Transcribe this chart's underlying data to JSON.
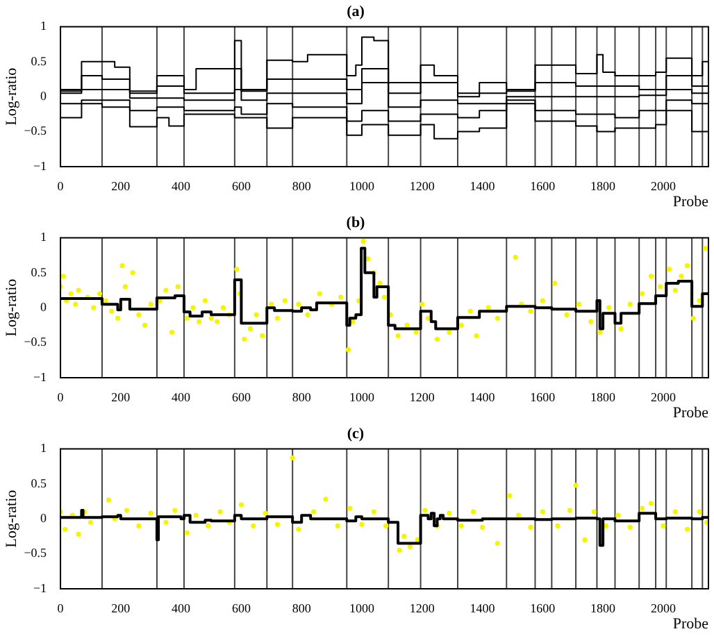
{
  "chart_data": [
    {
      "type": "step",
      "title": "(a)",
      "xlabel": "Probe",
      "ylabel": "Log-ratio",
      "xlim": [
        0,
        2150
      ],
      "xticks": [
        0,
        200,
        400,
        600,
        800,
        1000,
        1200,
        1400,
        1600,
        1800,
        2000
      ],
      "ylim": [
        -1,
        1
      ],
      "yticks": [
        -1,
        -0.5,
        0,
        0.5,
        1
      ],
      "grid": false,
      "legend": false,
      "ref_lines": [
        {
          "axis": "x",
          "value": 138
        },
        {
          "axis": "x",
          "value": 320
        },
        {
          "axis": "x",
          "value": 410
        },
        {
          "axis": "x",
          "value": 578
        },
        {
          "axis": "x",
          "value": 685
        },
        {
          "axis": "x",
          "value": 770
        },
        {
          "axis": "x",
          "value": 950
        },
        {
          "axis": "x",
          "value": 1088
        },
        {
          "axis": "x",
          "value": 1195
        },
        {
          "axis": "x",
          "value": 1318
        },
        {
          "axis": "x",
          "value": 1480
        },
        {
          "axis": "x",
          "value": 1575
        },
        {
          "axis": "x",
          "value": 1630
        },
        {
          "axis": "x",
          "value": 1710
        },
        {
          "axis": "x",
          "value": 1780
        },
        {
          "axis": "x",
          "value": 1840
        },
        {
          "axis": "x",
          "value": 1920
        },
        {
          "axis": "x",
          "value": 1975
        },
        {
          "axis": "x",
          "value": 2010
        },
        {
          "axis": "x",
          "value": 2095
        },
        {
          "axis": "x",
          "value": 2130
        }
      ],
      "series": [
        {
          "color": "#000000",
          "x": [
            0,
            70,
            180,
            230,
            320,
            410,
            450,
            578,
            600,
            685,
            770,
            820,
            950,
            980,
            1000,
            1040,
            1088,
            1195,
            1240,
            1318,
            1390,
            1480,
            1575,
            1710,
            1780,
            1800,
            1840,
            1920,
            1975,
            2010,
            2095,
            2130,
            2150
          ],
          "values": [
            0.1,
            0.5,
            0.42,
            0.08,
            0.3,
            0.1,
            0.4,
            0.8,
            0.1,
            0.52,
            0.5,
            0.6,
            0.3,
            0.45,
            0.85,
            0.8,
            0.2,
            0.45,
            0.3,
            0.0,
            0.2,
            0.1,
            0.45,
            0.33,
            0.6,
            0.35,
            0.3,
            0.3,
            0.35,
            0.55,
            0.3,
            0.5,
            0.5
          ]
        },
        {
          "color": "#000000",
          "x": [
            0,
            70,
            138,
            230,
            320,
            410,
            578,
            600,
            685,
            770,
            950,
            1000,
            1088,
            1195,
            1318,
            1480,
            1575,
            1710,
            1840,
            1920,
            2010,
            2095,
            2150
          ],
          "values": [
            0.08,
            0.3,
            0.25,
            0.05,
            0.15,
            0.05,
            0.4,
            0.08,
            0.25,
            0.25,
            0.1,
            0.4,
            0.05,
            0.2,
            0.05,
            0.08,
            0.2,
            0.15,
            0.15,
            0.1,
            0.3,
            0.15,
            0.15
          ]
        },
        {
          "color": "#000000",
          "x": [
            0,
            70,
            230,
            410,
            578,
            600,
            685,
            950,
            1000,
            1088,
            1195,
            1318,
            1480,
            1575,
            1920,
            2010,
            2095,
            2150
          ],
          "values": [
            0.05,
            0.1,
            -0.02,
            -0.05,
            0.1,
            -0.05,
            0.05,
            -0.1,
            0.2,
            -0.15,
            -0.05,
            -0.1,
            0.0,
            0.0,
            0.02,
            0.1,
            0.05,
            0.05
          ]
        },
        {
          "color": "#000000",
          "x": [
            0,
            70,
            230,
            320,
            410,
            578,
            600,
            685,
            770,
            950,
            1000,
            1088,
            1195,
            1318,
            1390,
            1480,
            1575,
            1710,
            1840,
            1920,
            2010,
            2095,
            2150
          ],
          "values": [
            -0.1,
            -0.05,
            -0.2,
            -0.15,
            -0.2,
            -0.15,
            -0.25,
            -0.1,
            -0.15,
            -0.35,
            -0.2,
            -0.35,
            -0.25,
            -0.3,
            -0.2,
            -0.05,
            -0.2,
            -0.25,
            -0.3,
            -0.2,
            -0.05,
            -0.1,
            -0.1
          ]
        },
        {
          "color": "#000000",
          "x": [
            0,
            70,
            138,
            230,
            320,
            360,
            410,
            578,
            600,
            685,
            770,
            950,
            1000,
            1088,
            1195,
            1240,
            1318,
            1390,
            1480,
            1575,
            1710,
            1780,
            1840,
            1920,
            1975,
            2010,
            2095,
            2150
          ],
          "values": [
            -0.3,
            -0.1,
            -0.15,
            -0.43,
            -0.3,
            -0.42,
            -0.25,
            -0.3,
            -0.3,
            -0.45,
            -0.3,
            -0.55,
            -0.4,
            -0.55,
            -0.4,
            -0.6,
            -0.5,
            -0.45,
            -0.1,
            -0.35,
            -0.42,
            -0.5,
            -0.45,
            -0.45,
            -0.4,
            -0.2,
            -0.5,
            -0.5
          ]
        }
      ]
    },
    {
      "type": "scatter",
      "title": "(b)",
      "xlabel": "Probe",
      "ylabel": "Log-ratio",
      "xlim": [
        0,
        2150
      ],
      "xticks": [
        0,
        200,
        400,
        600,
        800,
        1000,
        1200,
        1400,
        1600,
        1800,
        2000
      ],
      "ylim": [
        -1,
        1
      ],
      "yticks": [
        -1,
        -0.5,
        0,
        0.5,
        1
      ],
      "grid": false,
      "legend": false,
      "ref_lines": [
        {
          "axis": "x",
          "value": 138
        },
        {
          "axis": "x",
          "value": 320
        },
        {
          "axis": "x",
          "value": 410
        },
        {
          "axis": "x",
          "value": 578
        },
        {
          "axis": "x",
          "value": 685
        },
        {
          "axis": "x",
          "value": 770
        },
        {
          "axis": "x",
          "value": 950
        },
        {
          "axis": "x",
          "value": 1088
        },
        {
          "axis": "x",
          "value": 1195
        },
        {
          "axis": "x",
          "value": 1318
        },
        {
          "axis": "x",
          "value": 1480
        },
        {
          "axis": "x",
          "value": 1575
        },
        {
          "axis": "x",
          "value": 1630
        },
        {
          "axis": "x",
          "value": 1710
        },
        {
          "axis": "x",
          "value": 1780
        },
        {
          "axis": "x",
          "value": 1840
        },
        {
          "axis": "x",
          "value": 1920
        },
        {
          "axis": "x",
          "value": 1975
        },
        {
          "axis": "x",
          "value": 2010
        },
        {
          "axis": "x",
          "value": 2095
        },
        {
          "axis": "x",
          "value": 2130
        }
      ],
      "series": [
        {
          "type": "scatter",
          "marker": "circle",
          "color": "#f5f500",
          "x": [
            0,
            10,
            20,
            35,
            50,
            60,
            90,
            110,
            130,
            150,
            170,
            190,
            205,
            215,
            240,
            260,
            280,
            300,
            330,
            350,
            370,
            390,
            420,
            440,
            460,
            480,
            500,
            520,
            540,
            560,
            585,
            595,
            610,
            630,
            650,
            670,
            700,
            720,
            745,
            790,
            820,
            860,
            900,
            930,
            955,
            970,
            990,
            1005,
            1020,
            1040,
            1060,
            1075,
            1095,
            1120,
            1150,
            1180,
            1200,
            1220,
            1250,
            1290,
            1330,
            1360,
            1380,
            1420,
            1450,
            1510,
            1530,
            1560,
            1600,
            1640,
            1680,
            1720,
            1760,
            1790,
            1820,
            1860,
            1890,
            1930,
            1960,
            1990,
            2020,
            2040,
            2060,
            2080,
            2100,
            2120,
            2140
          ],
          "values": [
            0.3,
            0.45,
            0.1,
            0.2,
            0.05,
            0.25,
            0.15,
            0.0,
            0.2,
            0.1,
            -0.05,
            -0.15,
            0.6,
            0.3,
            0.5,
            -0.1,
            -0.25,
            0.05,
            0.1,
            0.25,
            -0.35,
            0.3,
            -0.15,
            0.0,
            -0.2,
            0.1,
            -0.15,
            -0.2,
            0.0,
            -0.1,
            0.55,
            0.2,
            -0.45,
            -0.3,
            -0.1,
            -0.4,
            0.05,
            -0.15,
            0.1,
            0.05,
            -0.1,
            0.2,
            0.05,
            0.15,
            -0.6,
            -0.2,
            0.1,
            0.95,
            0.7,
            0.5,
            0.35,
            0.15,
            -0.1,
            -0.4,
            -0.25,
            -0.35,
            0.05,
            -0.15,
            -0.45,
            -0.35,
            -0.25,
            -0.05,
            -0.4,
            0.0,
            -0.15,
            0.72,
            0.05,
            -0.05,
            0.1,
            0.35,
            -0.1,
            0.05,
            -0.2,
            -0.35,
            0.0,
            -0.3,
            0.05,
            0.2,
            0.45,
            0.3,
            0.55,
            0.25,
            0.45,
            0.6,
            -0.15,
            0.1,
            0.85
          ]
        },
        {
          "type": "step",
          "color": "#000000",
          "x": [
            0,
            138,
            190,
            200,
            230,
            320,
            380,
            410,
            430,
            470,
            500,
            578,
            600,
            685,
            710,
            770,
            800,
            830,
            850,
            950,
            960,
            980,
            998,
            1010,
            1040,
            1050,
            1088,
            1110,
            1195,
            1230,
            1245,
            1318,
            1390,
            1480,
            1575,
            1630,
            1710,
            1780,
            1790,
            1800,
            1840,
            1860,
            1920,
            1975,
            2010,
            2050,
            2095,
            2130,
            2150
          ],
          "values": [
            0.13,
            0.05,
            -0.03,
            0.12,
            -0.02,
            0.14,
            0.17,
            -0.06,
            -0.12,
            -0.06,
            -0.1,
            0.4,
            -0.22,
            0.0,
            -0.04,
            -0.05,
            0.0,
            -0.03,
            0.07,
            -0.25,
            -0.15,
            -0.1,
            0.85,
            0.5,
            0.15,
            0.3,
            -0.25,
            -0.3,
            -0.05,
            -0.2,
            -0.3,
            -0.14,
            -0.05,
            0.02,
            0.0,
            -0.02,
            -0.05,
            0.1,
            -0.3,
            -0.08,
            -0.22,
            -0.08,
            0.06,
            0.17,
            0.35,
            0.38,
            0.02,
            0.2,
            0.2
          ]
        }
      ]
    },
    {
      "type": "scatter",
      "title": "(c)",
      "xlabel": "Probe",
      "ylabel": "Log-ratio",
      "xlim": [
        0,
        2150
      ],
      "xticks": [
        0,
        200,
        400,
        600,
        800,
        1000,
        1200,
        1400,
        1600,
        1800,
        2000
      ],
      "ylim": [
        -1,
        1
      ],
      "yticks": [
        -1,
        -0.5,
        0,
        0.5,
        1
      ],
      "grid": false,
      "legend": false,
      "ref_lines": [
        {
          "axis": "x",
          "value": 138
        },
        {
          "axis": "x",
          "value": 320
        },
        {
          "axis": "x",
          "value": 410
        },
        {
          "axis": "x",
          "value": 578
        },
        {
          "axis": "x",
          "value": 685
        },
        {
          "axis": "x",
          "value": 770
        },
        {
          "axis": "x",
          "value": 950
        },
        {
          "axis": "x",
          "value": 1088
        },
        {
          "axis": "x",
          "value": 1195
        },
        {
          "axis": "x",
          "value": 1318
        },
        {
          "axis": "x",
          "value": 1480
        },
        {
          "axis": "x",
          "value": 1575
        },
        {
          "axis": "x",
          "value": 1630
        },
        {
          "axis": "x",
          "value": 1710
        },
        {
          "axis": "x",
          "value": 1780
        },
        {
          "axis": "x",
          "value": 1840
        },
        {
          "axis": "x",
          "value": 1920
        },
        {
          "axis": "x",
          "value": 1975
        },
        {
          "axis": "x",
          "value": 2010
        },
        {
          "axis": "x",
          "value": 2095
        },
        {
          "axis": "x",
          "value": 2130
        }
      ],
      "series": [
        {
          "type": "scatter",
          "marker": "circle",
          "color": "#f5f500",
          "x": [
            0,
            15,
            40,
            60,
            80,
            100,
            160,
            180,
            220,
            260,
            300,
            350,
            380,
            420,
            450,
            490,
            530,
            560,
            600,
            640,
            680,
            720,
            770,
            790,
            840,
            880,
            920,
            960,
            1000,
            1040,
            1080,
            1125,
            1140,
            1160,
            1185,
            1210,
            1250,
            1290,
            1330,
            1370,
            1400,
            1450,
            1490,
            1520,
            1560,
            1600,
            1650,
            1690,
            1710,
            1740,
            1770,
            1810,
            1850,
            1890,
            1930,
            1960,
            2000,
            2040,
            2080,
            2120,
            2145
          ],
          "values": [
            0.1,
            -0.15,
            0.05,
            -0.22,
            0.1,
            -0.05,
            0.27,
            0.0,
            0.12,
            -0.1,
            0.08,
            -0.05,
            0.12,
            -0.2,
            0.05,
            -0.1,
            0.1,
            -0.05,
            0.2,
            -0.1,
            0.08,
            -0.08,
            0.87,
            -0.15,
            0.1,
            0.28,
            -0.1,
            0.15,
            -0.08,
            0.1,
            -0.1,
            -0.45,
            -0.25,
            -0.4,
            -0.3,
            0.12,
            -0.1,
            0.08,
            -0.1,
            0.1,
            -0.12,
            -0.35,
            0.33,
            0.05,
            -0.12,
            0.1,
            -0.1,
            0.12,
            0.48,
            -0.3,
            0.1,
            -0.1,
            0.05,
            -0.12,
            0.15,
            0.22,
            -0.1,
            0.1,
            -0.15,
            0.1,
            -0.05
          ]
        },
        {
          "type": "step",
          "color": "#000000",
          "x": [
            0,
            70,
            75,
            138,
            190,
            200,
            320,
            325,
            400,
            410,
            430,
            480,
            500,
            578,
            600,
            685,
            770,
            800,
            830,
            950,
            980,
            1000,
            1088,
            1120,
            1195,
            1220,
            1230,
            1240,
            1250,
            1260,
            1270,
            1318,
            1400,
            1575,
            1630,
            1710,
            1780,
            1790,
            1800,
            1840,
            1920,
            1975,
            2010,
            2095,
            2130,
            2150
          ],
          "values": [
            0.02,
            0.12,
            0.02,
            0.03,
            0.05,
            0.0,
            -0.3,
            0.03,
            0.0,
            0.05,
            -0.05,
            -0.02,
            -0.03,
            0.05,
            0.0,
            0.03,
            -0.05,
            0.05,
            0.0,
            -0.03,
            0.03,
            0.0,
            -0.05,
            -0.35,
            0.05,
            0.0,
            0.08,
            -0.1,
            0.0,
            0.05,
            0.0,
            -0.02,
            0.0,
            -0.01,
            0.0,
            0.01,
            0.0,
            -0.38,
            0.0,
            -0.03,
            0.08,
            0.0,
            0.01,
            0.0,
            0.02,
            0.02
          ]
        }
      ]
    }
  ]
}
